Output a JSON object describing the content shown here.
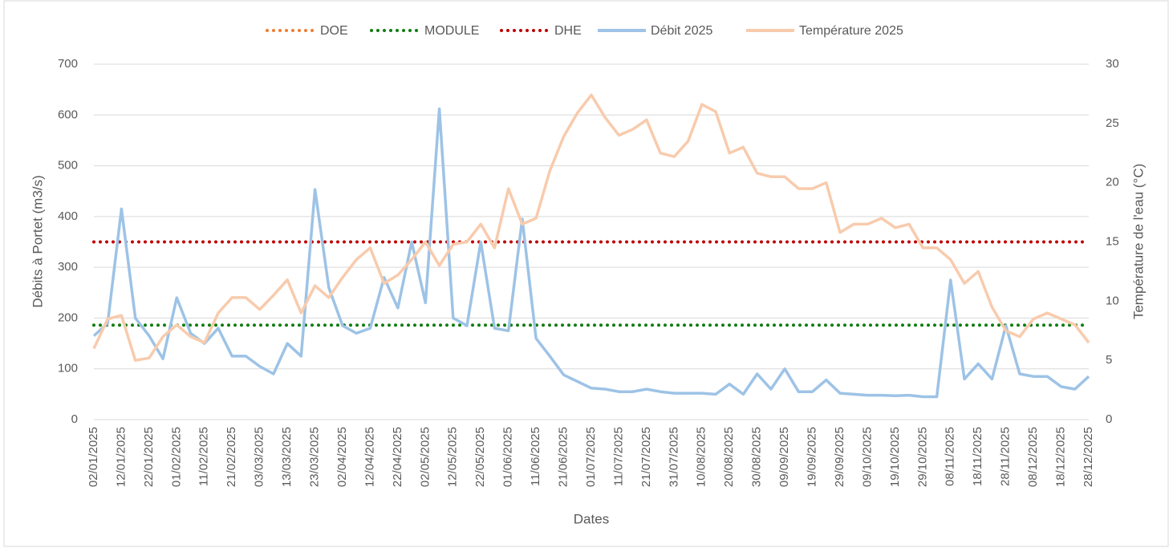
{
  "chart_data": {
    "type": "line",
    "xlabel": "Dates",
    "ylabel": "Débits à Portet (m3/s)",
    "y2label": "Température de l'eau (°C)",
    "categories": [
      "02/01/2025",
      null,
      "12/01/2025",
      null,
      "22/01/2025",
      null,
      "01/02/2025",
      null,
      "11/02/2025",
      null,
      "21/02/2025",
      null,
      "03/03/2025",
      null,
      "13/03/2025",
      null,
      "23/03/2025",
      null,
      "02/04/2025",
      null,
      "12/04/2025",
      null,
      "22/04/2025",
      null,
      "02/05/2025",
      null,
      "12/05/2025",
      null,
      "22/05/2025",
      null,
      "01/06/2025",
      null,
      "11/06/2025",
      null,
      "21/06/2025",
      null,
      "01/07/2025",
      null,
      "11/07/2025",
      null,
      "21/07/2025",
      null,
      "31/07/2025",
      null,
      "10/08/2025",
      null,
      "20/08/2025",
      null,
      "30/08/2025",
      null,
      "09/09/2025",
      null,
      "19/09/2025",
      null,
      "29/09/2025",
      null,
      "09/10/2025",
      null,
      "19/10/2025",
      null,
      "29/10/2025",
      null,
      "08/11/2025",
      null,
      "18/11/2025",
      null,
      "28/11/2025",
      null,
      "08/12/2025",
      null,
      "18/12/2025",
      null,
      "28/12/2025"
    ],
    "series": [
      {
        "name": "DOE",
        "color": "#ed7d31",
        "style": "dotted"
      },
      {
        "name": "MODULE",
        "color": "#107c10",
        "style": "dotted",
        "value": 186
      },
      {
        "name": "DHE",
        "color": "#c00000",
        "style": "dotted",
        "value": 350
      },
      {
        "name": "Débit 2025",
        "color": "#9dc3e6",
        "style": "solid",
        "axis": "y",
        "values": [
          165,
          190,
          415,
          200,
          165,
          120,
          240,
          170,
          150,
          180,
          125,
          125,
          105,
          90,
          150,
          125,
          453,
          260,
          185,
          170,
          180,
          280,
          220,
          350,
          230,
          612,
          200,
          185,
          350,
          180,
          175,
          395,
          160,
          125,
          88,
          75,
          62,
          60,
          55,
          55,
          60,
          55,
          52,
          52,
          52,
          50,
          70,
          50,
          90,
          60,
          100,
          55,
          55,
          78,
          52,
          50,
          48,
          48,
          47,
          48,
          45,
          45,
          275,
          80,
          110,
          80,
          185,
          90,
          85,
          85,
          65,
          60,
          85
        ]
      },
      {
        "name": "Température 2025",
        "color": "#f8cbad",
        "style": "solid",
        "axis": "y2",
        "values": [
          6.0,
          8.5,
          8.8,
          5.0,
          5.2,
          7.0,
          8.0,
          7.0,
          6.5,
          9.0,
          10.3,
          10.3,
          9.3,
          10.5,
          11.8,
          9.0,
          11.3,
          10.3,
          12.0,
          13.5,
          14.5,
          11.5,
          12.2,
          13.5,
          15.0,
          13.0,
          14.8,
          15.0,
          16.5,
          14.5,
          19.5,
          16.5,
          17.0,
          21.0,
          23.9,
          25.9,
          27.4,
          25.5,
          24.0,
          24.5,
          25.3,
          22.5,
          22.2,
          23.5,
          26.6,
          26.0,
          22.5,
          23.0,
          20.8,
          20.5,
          20.5,
          19.5,
          19.5,
          20.0,
          15.8,
          16.5,
          16.5,
          17.0,
          16.2,
          16.5,
          14.5,
          14.5,
          13.5,
          11.5,
          12.5,
          9.5,
          7.5,
          7.0,
          8.5,
          9.0,
          8.5,
          8.0,
          6.5
        ]
      }
    ],
    "ylim": [
      0,
      700
    ],
    "yticks": [
      0,
      100,
      200,
      300,
      400,
      500,
      600,
      700
    ],
    "y2lim": [
      0,
      30
    ],
    "y2ticks": [
      0,
      5,
      10,
      15,
      20,
      25,
      30
    ],
    "grid": true,
    "legend": "top"
  }
}
